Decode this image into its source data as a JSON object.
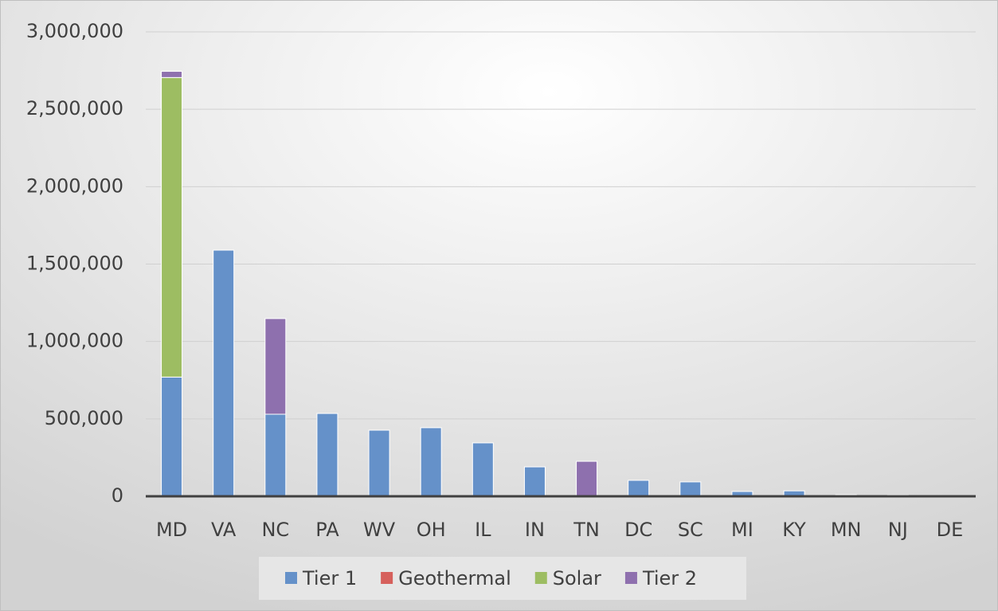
{
  "chart_data": {
    "type": "stacked-bar",
    "categories": [
      "MD",
      "VA",
      "NC",
      "PA",
      "WV",
      "OH",
      "IL",
      "IN",
      "TN",
      "DC",
      "SC",
      "MI",
      "KY",
      "MN",
      "NJ",
      "DE"
    ],
    "series": [
      {
        "name": "Tier 1",
        "color": "#6591c9",
        "values": [
          770000,
          1590000,
          530000,
          535000,
          427000,
          443000,
          345000,
          190000,
          0,
          103000,
          93000,
          31000,
          35000,
          10000,
          8000,
          3000
        ]
      },
      {
        "name": "Geothermal",
        "color": "#d6605c",
        "values": [
          0,
          0,
          0,
          0,
          0,
          0,
          0,
          0,
          0,
          0,
          0,
          0,
          0,
          0,
          0,
          0
        ]
      },
      {
        "name": "Solar",
        "color": "#9dbd62",
        "values": [
          1935000,
          0,
          0,
          0,
          0,
          0,
          0,
          0,
          0,
          0,
          0,
          0,
          0,
          0,
          0,
          0
        ]
      },
      {
        "name": "Tier 2",
        "color": "#8e70ae",
        "values": [
          40000,
          0,
          618000,
          0,
          0,
          0,
          0,
          0,
          226000,
          0,
          0,
          0,
          0,
          0,
          0,
          0
        ]
      }
    ],
    "ylim": [
      0,
      3000000
    ],
    "yticks": [
      0,
      {
        "value": 500000,
        "label": "500,000"
      },
      {
        "value": 1000000,
        "label": "1,000,000"
      },
      {
        "value": 1500000,
        "label": "1,500,000"
      },
      {
        "value": 2000000,
        "label": "2,000,000"
      },
      {
        "value": 2500000,
        "label": "2,500,000"
      },
      {
        "value": 3000000,
        "label": "3,000,000"
      }
    ],
    "grid": true,
    "legend": "bottom"
  }
}
